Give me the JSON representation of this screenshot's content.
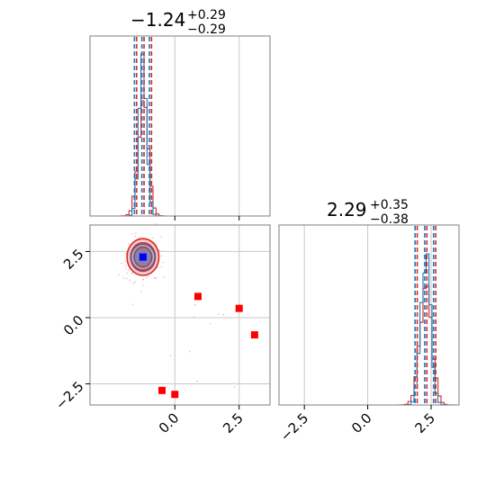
{
  "chart_data": {
    "type": "corner",
    "params": [
      {
        "title_main": "−1.24",
        "title_plus": "+0.29",
        "title_minus": "−0.29",
        "median": -1.24,
        "lo": -1.53,
        "hi": -0.95,
        "range": [
          -3.3,
          3.7
        ],
        "ticks": [
          0.0,
          2.5
        ],
        "tick_labels": [
          "0.0",
          "2.5"
        ]
      },
      {
        "title_main": "2.29",
        "title_plus": "+0.35",
        "title_minus": "−0.38",
        "median": 2.29,
        "lo": 1.91,
        "hi": 2.64,
        "range": [
          -3.5,
          3.6
        ],
        "ticks": [
          -2.5,
          0.0,
          2.5
        ],
        "tick_labels": [
          "−2.5",
          "0.0",
          "2.5"
        ]
      }
    ],
    "joint": {
      "ylim": [
        -3.3,
        3.5
      ],
      "yticks": [
        -2.5,
        0.0,
        2.5
      ],
      "ytick_labels": [
        "−2.5",
        "0.0",
        "2.5"
      ],
      "walker_points": [
        {
          "x": 0.9,
          "y": 0.8
        },
        {
          "x": 2.5,
          "y": 0.35
        },
        {
          "x": 3.1,
          "y": -0.65
        },
        {
          "x": -0.5,
          "y": -2.75
        },
        {
          "x": 0.0,
          "y": -2.9
        }
      ],
      "true_point": {
        "x": -1.24,
        "y": 2.29
      }
    },
    "series": [
      {
        "color": "#1f77b4",
        "sigma1": 0.15,
        "sigma2": 0.19
      },
      {
        "color": "#d62728",
        "sigma1": 0.2,
        "sigma2": 0.24
      }
    ],
    "grid": true
  }
}
